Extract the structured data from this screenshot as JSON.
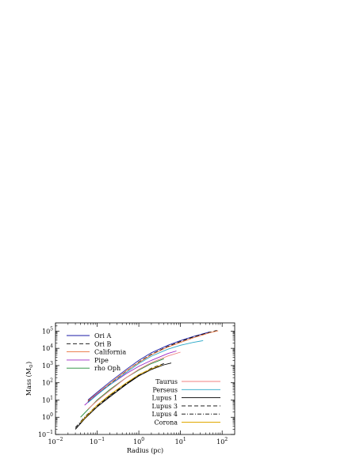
{
  "chart_data": {
    "type": "line",
    "title": "",
    "xlabel": "Radius (pc)",
    "ylabel_main": "Mass (M",
    "ylabel_sub": "⊙",
    "ylabel_close": ")",
    "x_scale": "log",
    "y_scale": "log",
    "xlim": [
      0.01,
      200
    ],
    "ylim": [
      0.1,
      300000
    ],
    "grid": false,
    "x_ticks": [
      {
        "value": 0.01,
        "base": "10",
        "exp": "−2"
      },
      {
        "value": 0.1,
        "base": "10",
        "exp": "−1"
      },
      {
        "value": 1,
        "base": "10",
        "exp": "0"
      },
      {
        "value": 10,
        "base": "10",
        "exp": "1"
      },
      {
        "value": 100,
        "base": "10",
        "exp": "2"
      }
    ],
    "y_ticks": [
      {
        "value": 0.1,
        "base": "10",
        "exp": "−1"
      },
      {
        "value": 1,
        "base": "10",
        "exp": "0"
      },
      {
        "value": 10,
        "base": "10",
        "exp": "1"
      },
      {
        "value": 100,
        "base": "10",
        "exp": "2"
      },
      {
        "value": 1000,
        "base": "10",
        "exp": "3"
      },
      {
        "value": 10000,
        "base": "10",
        "exp": "4"
      },
      {
        "value": 100000,
        "base": "10",
        "exp": "5"
      }
    ],
    "legend_top_left": [
      "Ori A",
      "Ori B",
      "California",
      "Pipe",
      "rho Oph"
    ],
    "legend_bottom_right": [
      "Taurus",
      "Perseus",
      "Lupus 1",
      "Lupus 3",
      "Lupus 4",
      "Corona"
    ],
    "series": [
      {
        "name": "Ori A",
        "color": "#1a1aa6",
        "dash": "solid",
        "x": [
          0.06,
          0.1,
          0.2,
          0.5,
          1,
          2,
          5,
          10,
          20,
          50
        ],
        "y": [
          10,
          28,
          110,
          600,
          2000,
          5500,
          15000,
          28000,
          48000,
          90000
        ]
      },
      {
        "name": "Ori B",
        "color": "#000000",
        "dash": "dashed",
        "x": [
          0.06,
          0.1,
          0.2,
          0.5,
          1,
          2,
          5,
          10,
          20,
          50,
          75
        ],
        "y": [
          8,
          22,
          85,
          480,
          1600,
          4500,
          13000,
          25000,
          45000,
          85000,
          110000
        ]
      },
      {
        "name": "California",
        "color": "#e8703a",
        "dash": "solid",
        "x": [
          0.06,
          0.1,
          0.2,
          0.5,
          1,
          2,
          5,
          10,
          20,
          50,
          80
        ],
        "y": [
          9,
          24,
          90,
          500,
          1500,
          4200,
          12000,
          22000,
          40000,
          80000,
          105000
        ]
      },
      {
        "name": "Pipe",
        "color": "#9b27c4",
        "dash": "solid",
        "x": [
          0.05,
          0.1,
          0.2,
          0.5,
          1,
          2,
          5,
          8
        ],
        "y": [
          5,
          22,
          75,
          340,
          900,
          2000,
          5000,
          7000
        ]
      },
      {
        "name": "rho Oph",
        "color": "#1f8a35",
        "dash": "solid",
        "x": [
          0.04,
          0.1,
          0.2,
          0.5,
          1,
          2,
          4
        ],
        "y": [
          1,
          10,
          40,
          200,
          550,
          1300,
          2500
        ]
      },
      {
        "name": "Taurus",
        "color": "#f08080",
        "dash": "solid",
        "x": [
          0.06,
          0.1,
          0.2,
          0.5,
          1,
          2,
          5,
          10
        ],
        "y": [
          3,
          9,
          35,
          200,
          600,
          1500,
          3600,
          6000
        ]
      },
      {
        "name": "Perseus",
        "color": "#2aa8c8",
        "dash": "solid",
        "x": [
          0.06,
          0.1,
          0.2,
          0.5,
          1,
          2,
          5,
          10,
          20,
          35
        ],
        "y": [
          7,
          20,
          75,
          400,
          1300,
          3500,
          9000,
          15000,
          22000,
          28000
        ]
      },
      {
        "name": "Lupus 1",
        "color": "#000000",
        "dash": "solid",
        "x": [
          0.03,
          0.05,
          0.1,
          0.2,
          0.5,
          1,
          2,
          4,
          6
        ],
        "y": [
          0.2,
          0.8,
          4,
          15,
          80,
          250,
          600,
          1100,
          1400
        ]
      },
      {
        "name": "Lupus 3",
        "color": "#000000",
        "dash": "dashed",
        "x": [
          0.03,
          0.05,
          0.1,
          0.2,
          0.5,
          1,
          2,
          4
        ],
        "y": [
          0.2,
          0.9,
          4.5,
          17,
          90,
          280,
          700,
          1300
        ]
      },
      {
        "name": "Lupus 4",
        "color": "#000000",
        "dash": "dashdot",
        "x": [
          0.03,
          0.05,
          0.1,
          0.2,
          0.5,
          1,
          2,
          3
        ],
        "y": [
          0.25,
          1,
          5,
          18,
          90,
          260,
          600,
          850
        ]
      },
      {
        "name": "Corona",
        "color": "#e0a800",
        "dash": "solid",
        "x": [
          0.04,
          0.1,
          0.2,
          0.5,
          1,
          2,
          3.5
        ],
        "y": [
          0.5,
          5,
          20,
          100,
          300,
          650,
          1100
        ]
      }
    ]
  }
}
